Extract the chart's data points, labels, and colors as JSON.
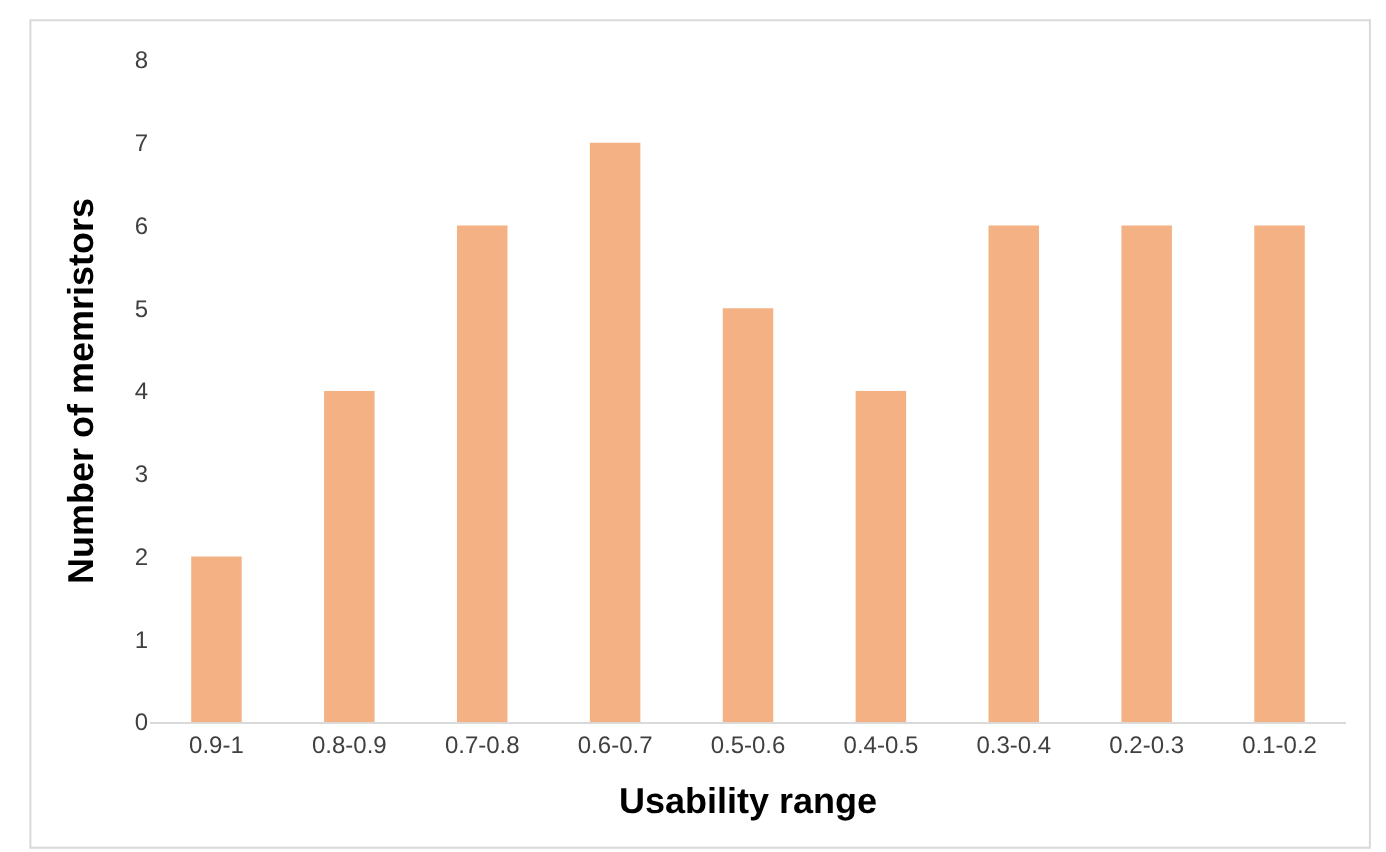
{
  "chart_data": {
    "type": "bar",
    "xlabel": "Usability range",
    "ylabel": "Number of memristors",
    "categories": [
      "0.9-1",
      "0.8-0.9",
      "0.7-0.8",
      "0.6-0.7",
      "0.5-0.6",
      "0.4-0.5",
      "0.3-0.4",
      "0.2-0.3",
      "0.1-0.2"
    ],
    "values": [
      2,
      4,
      6,
      7,
      5,
      4,
      6,
      6,
      6
    ],
    "color": "#f4b183",
    "ylim": [
      0,
      8
    ],
    "yticks": [
      0,
      1,
      2,
      3,
      4,
      5,
      6,
      7,
      8
    ],
    "grid": false
  }
}
